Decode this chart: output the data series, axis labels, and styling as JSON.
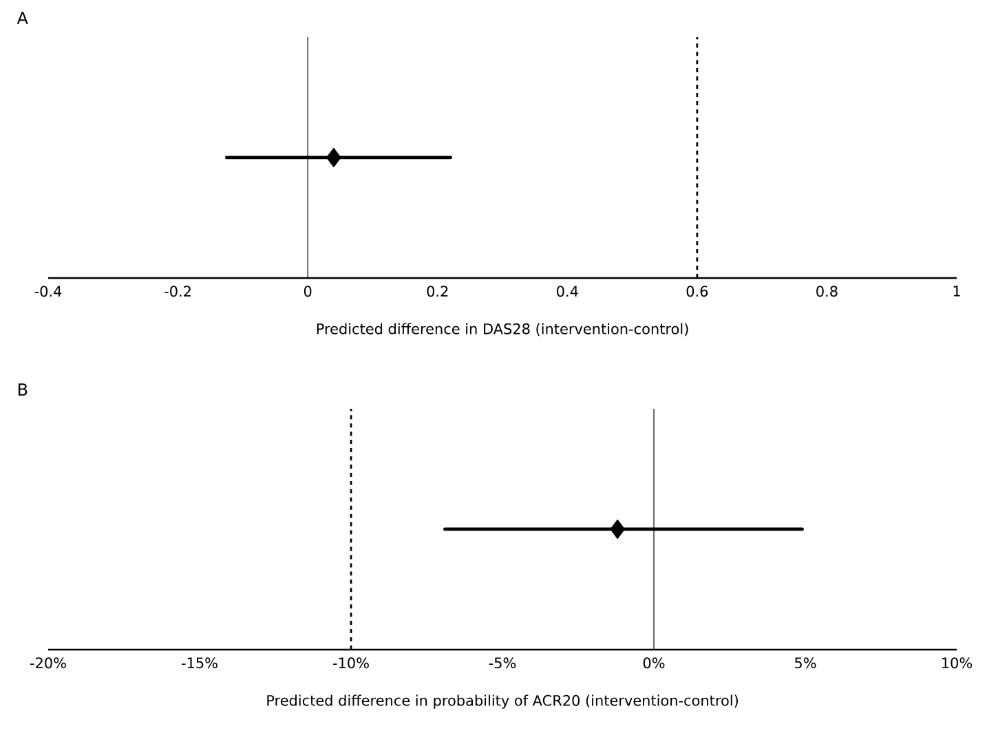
{
  "chart_data": [
    {
      "type": "scatter",
      "orientation": "horizontal",
      "title": "A",
      "xlabel": "Predicted difference in DAS28 (intervention-control)",
      "categories": [
        null
      ],
      "values": [
        0.04
      ],
      "errors": [
        [
          -0.125,
          0.22
        ]
      ],
      "color": "#000000",
      "marker": "diamond",
      "xlim": [
        -0.4,
        1
      ],
      "xticks": [
        -0.4,
        -0.2,
        0,
        0.2,
        0.4,
        0.6,
        0.8,
        1
      ],
      "tick_labels": "x",
      "ref_lines": [
        {
          "axis": "x",
          "value": 0,
          "line_style": "solid"
        },
        {
          "axis": "x",
          "value": 0.6,
          "line_style": "dashed"
        }
      ]
    },
    {
      "type": "scatter",
      "orientation": "horizontal",
      "title": "B",
      "xlabel": "Predicted difference in probability of ACR20 (intervention-control)",
      "categories": [
        null
      ],
      "values": [
        -1.2
      ],
      "errors": [
        [
          -6.9,
          4.9
        ]
      ],
      "color": "#000000",
      "marker": "diamond",
      "xlim": [
        -20,
        10
      ],
      "xticks": [
        {
          "value": -20,
          "label": "-20%"
        },
        {
          "value": -15,
          "label": "-15%"
        },
        {
          "value": -10,
          "label": "-10%"
        },
        {
          "value": -5,
          "label": "-5%"
        },
        {
          "value": 0,
          "label": "0%"
        },
        {
          "value": 5,
          "label": "5%"
        },
        {
          "value": 10,
          "label": "10%"
        }
      ],
      "tick_labels": "x",
      "ref_lines": [
        {
          "axis": "x",
          "value": 0,
          "line_style": "solid"
        },
        {
          "axis": "x",
          "value": -10,
          "line_style": "dashed"
        }
      ]
    }
  ]
}
